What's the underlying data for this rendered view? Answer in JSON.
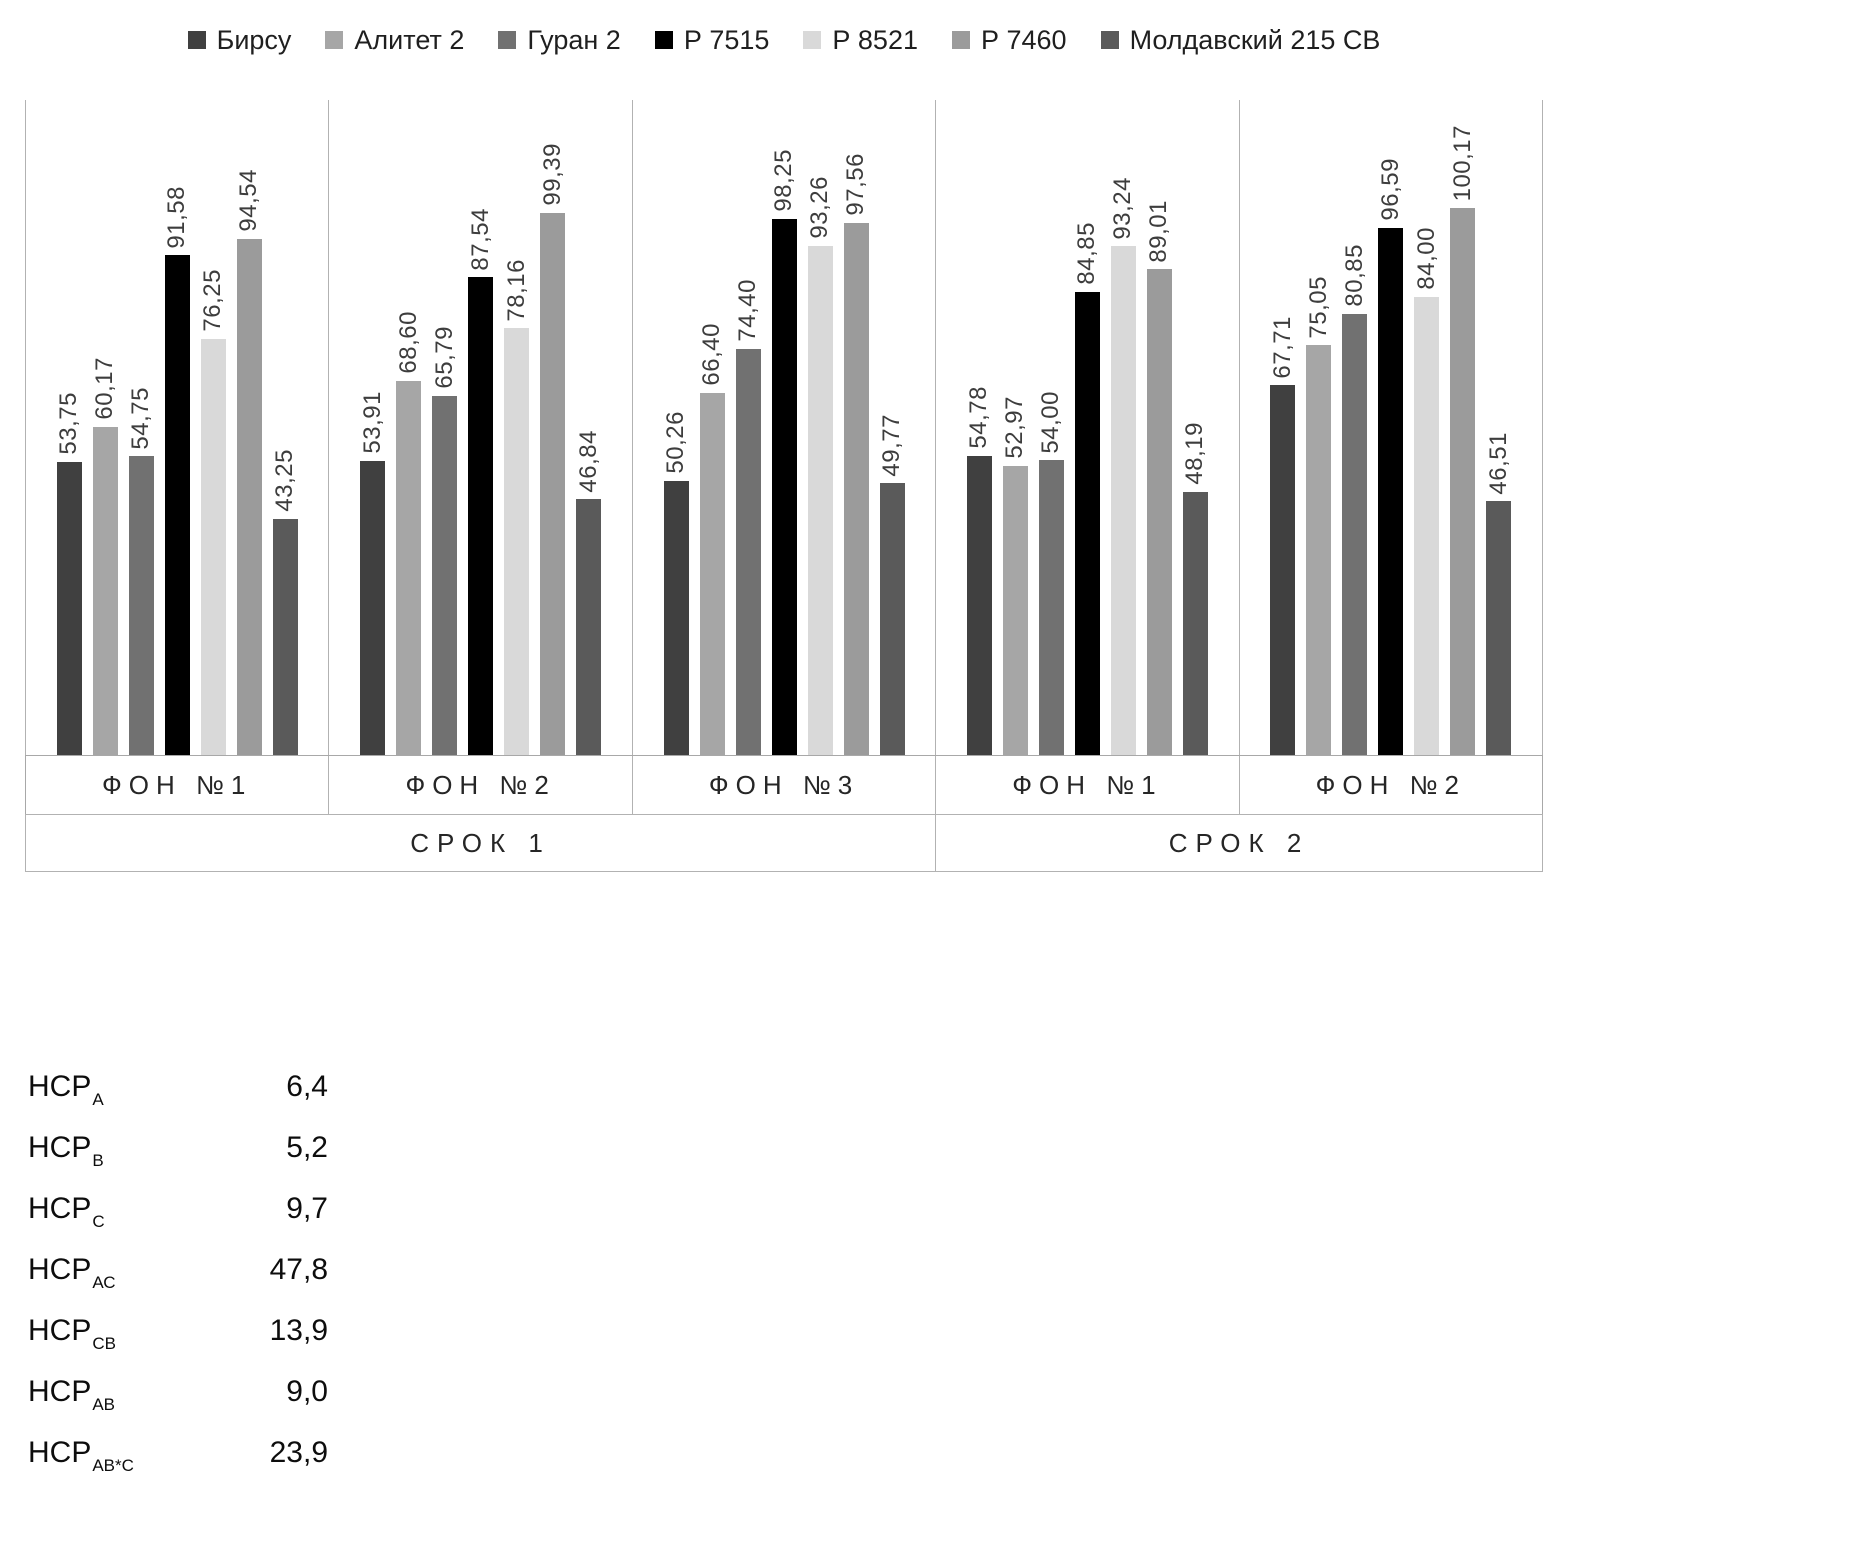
{
  "chart_data": {
    "type": "bar",
    "title": "",
    "legend_position": "top",
    "grid": false,
    "ylim": [
      0,
      120
    ],
    "value_label_style": "rotated 90deg, comma decimal separator",
    "series": [
      {
        "name": "Бирсу",
        "color": "#404040"
      },
      {
        "name": "Алитет 2",
        "color": "#a6a6a6"
      },
      {
        "name": "Гуран 2",
        "color": "#717171"
      },
      {
        "name": "Р 7515",
        "color": "#000000"
      },
      {
        "name": "Р 8521",
        "color": "#d9d9d9"
      },
      {
        "name": "Р 7460",
        "color": "#9b9b9b"
      },
      {
        "name": "Молдавский 215 СВ",
        "color": "#5a5a5a"
      }
    ],
    "groups": [
      {
        "label": "СРОК 1",
        "panels": [
          {
            "label": "ФОН №1",
            "values": [
              53.75,
              60.17,
              54.75,
              91.58,
              76.25,
              94.54,
              43.25
            ]
          },
          {
            "label": "ФОН №2",
            "values": [
              53.91,
              68.6,
              65.79,
              87.54,
              78.16,
              99.39,
              46.84
            ]
          },
          {
            "label": "ФОН №3",
            "values": [
              50.26,
              66.4,
              74.4,
              98.25,
              93.26,
              97.56,
              49.77
            ]
          }
        ]
      },
      {
        "label": "СРОК 2",
        "panels": [
          {
            "label": "ФОН №1",
            "values": [
              54.78,
              52.97,
              54.0,
              84.85,
              93.24,
              89.01,
              48.19
            ]
          },
          {
            "label": "ФОН №2",
            "values": [
              67.71,
              75.05,
              80.85,
              96.59,
              84.0,
              100.17,
              46.51
            ]
          }
        ]
      }
    ]
  },
  "hcp_table": {
    "rows": [
      {
        "label": "НСР",
        "sub": "А",
        "value": "6,4"
      },
      {
        "label": "НСР",
        "sub": "В",
        "value": "5,2"
      },
      {
        "label": "НСР",
        "sub": "С",
        "value": "9,7"
      },
      {
        "label": "НСР",
        "sub": "АС",
        "value": "47,8"
      },
      {
        "label": "НСР",
        "sub": "СВ",
        "value": "13,9"
      },
      {
        "label": "НСР",
        "sub": "АВ",
        "value": "9,0"
      },
      {
        "label": "НСР",
        "sub": "АВ*С",
        "value": "23,9"
      }
    ]
  }
}
